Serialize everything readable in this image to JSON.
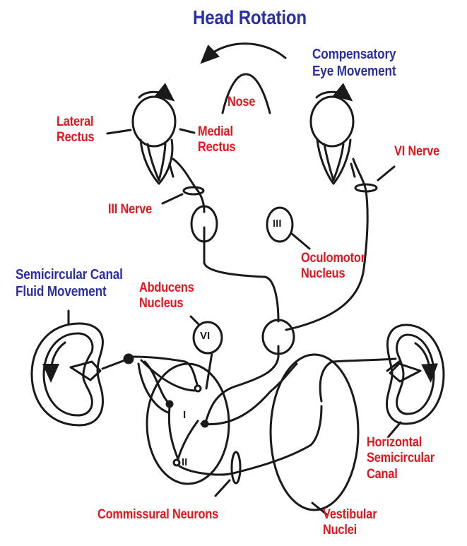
{
  "title": "Head Rotation",
  "labels": {
    "compensatory": [
      "Compensatory",
      "Eye Movement"
    ],
    "semicircular_fluid": [
      "Semicircular Canal",
      "Fluid Movement"
    ],
    "nose": "Nose",
    "lateral_rectus": [
      "Lateral",
      "Rectus"
    ],
    "medial_rectus": [
      "Medial",
      "Rectus"
    ],
    "vi_nerve": "VI Nerve",
    "iii_nerve": "III Nerve",
    "oculomotor_nucleus": [
      "Oculomotor",
      "Nucleus"
    ],
    "abducens_nucleus": [
      "Abducens",
      "Nucleus"
    ],
    "horizontal_canal": [
      "Horizontal",
      "Semicircular",
      "Canal"
    ],
    "commissural": "Commissural Neurons",
    "vestibular": [
      "Vestibular",
      "Nuclei"
    ]
  },
  "nucleus_marks": {
    "iii": "III",
    "vi": "VI",
    "neuron_i": "I",
    "neuron_ii": "II"
  },
  "colors": {
    "label_red": "#e8141c",
    "label_blue": "#2b2fa6",
    "line": "#1a1a1a"
  }
}
